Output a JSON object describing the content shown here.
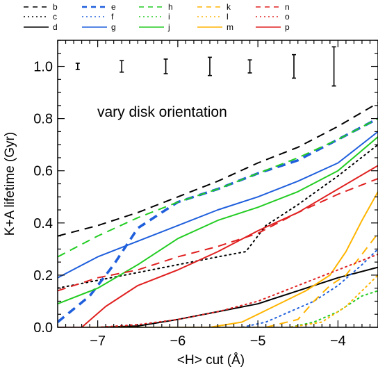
{
  "chart_data": {
    "type": "line",
    "xlabel": "<H> cut (Å)",
    "ylabel": "K+A lifetime (Gyr)",
    "xlim": [
      -7.5,
      -3.5
    ],
    "ylim": [
      0.0,
      1.1
    ],
    "xticks": [
      -7,
      -6,
      -5,
      -4
    ],
    "yticks": [
      0.0,
      0.2,
      0.4,
      0.6,
      0.8,
      1.0
    ],
    "xtick_labels": [
      "−7",
      "−6",
      "−5",
      "−4"
    ],
    "ytick_labels": [
      "0.0",
      "0.2",
      "0.4",
      "0.6",
      "0.8",
      "1.0"
    ],
    "annotation": "vary disk orientation",
    "grid": false,
    "legend_position": "top",
    "error_bars": [
      {
        "x": -7.25,
        "y": 1.0,
        "err": 0.012
      },
      {
        "x": -6.7,
        "y": 1.0,
        "err": 0.022
      },
      {
        "x": -6.15,
        "y": 1.0,
        "err": 0.028
      },
      {
        "x": -5.6,
        "y": 1.0,
        "err": 0.035
      },
      {
        "x": -5.1,
        "y": 1.0,
        "err": 0.025
      },
      {
        "x": -4.55,
        "y": 1.0,
        "err": 0.045
      },
      {
        "x": -4.05,
        "y": 1.0,
        "err": 0.075
      }
    ],
    "series": [
      {
        "name": "b",
        "color": "#000000",
        "dash": "dashed",
        "x": [
          -7.5,
          -7.0,
          -6.5,
          -6.0,
          -5.5,
          -5.0,
          -4.5,
          -4.0,
          -3.5
        ],
        "y": [
          0.35,
          0.39,
          0.44,
          0.5,
          0.56,
          0.63,
          0.69,
          0.77,
          0.86
        ]
      },
      {
        "name": "c",
        "color": "#000000",
        "dash": "dotted",
        "x": [
          -7.5,
          -7.0,
          -6.5,
          -6.0,
          -5.5,
          -5.15,
          -4.9,
          -4.5,
          -4.0,
          -3.5
        ],
        "y": [
          0.15,
          0.18,
          0.21,
          0.24,
          0.27,
          0.29,
          0.39,
          0.47,
          0.58,
          0.7
        ]
      },
      {
        "name": "d",
        "color": "#000000",
        "dash": "solid",
        "x": [
          -7.5,
          -7.0,
          -6.5,
          -6.0,
          -5.5,
          -5.0,
          -4.5,
          -4.0,
          -3.5
        ],
        "y": [
          0.0,
          0.0,
          0.005,
          0.03,
          0.06,
          0.09,
          0.14,
          0.19,
          0.23
        ]
      },
      {
        "name": "e",
        "color": "#1f5fdc",
        "dash": "dashed-thick",
        "x": [
          -7.5,
          -7.1,
          -6.8,
          -6.5,
          -6.2,
          -6.0,
          -5.5,
          -5.0,
          -4.5,
          -4.0,
          -3.5
        ],
        "y": [
          0.02,
          0.12,
          0.24,
          0.38,
          0.44,
          0.48,
          0.53,
          0.59,
          0.64,
          0.72,
          0.8
        ]
      },
      {
        "name": "f",
        "color": "#1f5fdc",
        "dash": "dotted",
        "x": [
          -7.5,
          -5.2,
          -4.9,
          -4.6,
          -4.3,
          -4.0,
          -3.7,
          -3.5
        ],
        "y": [
          0.0,
          0.0,
          0.02,
          0.06,
          0.1,
          0.16,
          0.24,
          0.3
        ]
      },
      {
        "name": "g",
        "color": "#1f5fdc",
        "dash": "solid",
        "x": [
          -7.5,
          -7.0,
          -6.5,
          -6.0,
          -5.5,
          -5.0,
          -4.5,
          -4.0,
          -3.5
        ],
        "y": [
          0.19,
          0.27,
          0.33,
          0.39,
          0.45,
          0.5,
          0.56,
          0.63,
          0.75
        ]
      },
      {
        "name": "h",
        "color": "#22cc22",
        "dash": "dashed",
        "x": [
          -7.5,
          -7.0,
          -6.5,
          -6.0,
          -5.5,
          -5.0,
          -4.5,
          -4.0,
          -3.5
        ],
        "y": [
          0.27,
          0.35,
          0.42,
          0.48,
          0.53,
          0.59,
          0.65,
          0.72,
          0.8
        ]
      },
      {
        "name": "i",
        "color": "#22cc22",
        "dash": "dotted",
        "x": [
          -7.5,
          -4.6,
          -4.3,
          -4.0,
          -3.7,
          -3.5
        ],
        "y": [
          0.0,
          0.0,
          0.02,
          0.06,
          0.12,
          0.14
        ]
      },
      {
        "name": "j",
        "color": "#22cc22",
        "dash": "solid",
        "x": [
          -7.5,
          -7.0,
          -6.5,
          -6.0,
          -5.5,
          -5.0,
          -4.5,
          -4.0,
          -3.5
        ],
        "y": [
          0.09,
          0.15,
          0.24,
          0.34,
          0.41,
          0.46,
          0.52,
          0.6,
          0.73
        ]
      },
      {
        "name": "k",
        "color": "#ffb400",
        "dash": "dashed",
        "x": [
          -7.5,
          -4.9,
          -4.5,
          -4.3,
          -4.1,
          -3.9,
          -3.7,
          -3.5
        ],
        "y": [
          0.0,
          0.0,
          0.03,
          0.1,
          0.16,
          0.2,
          0.28,
          0.36
        ]
      },
      {
        "name": "l",
        "color": "#ffb400",
        "dash": "dotted",
        "x": [
          -7.5,
          -4.6,
          -4.2,
          -3.9,
          -3.6,
          -3.5
        ],
        "y": [
          0.0,
          0.0,
          0.02,
          0.08,
          0.17,
          0.2
        ]
      },
      {
        "name": "m",
        "color": "#ffb400",
        "dash": "solid",
        "x": [
          -7.5,
          -5.6,
          -5.2,
          -4.8,
          -4.4,
          -4.1,
          -3.9,
          -3.7,
          -3.5
        ],
        "y": [
          0.0,
          0.0,
          0.02,
          0.08,
          0.14,
          0.2,
          0.29,
          0.41,
          0.52
        ]
      },
      {
        "name": "n",
        "color": "#e02020",
        "dash": "dashed",
        "x": [
          -7.5,
          -7.0,
          -6.5,
          -6.0,
          -5.5,
          -5.0,
          -4.5,
          -4.0,
          -3.5
        ],
        "y": [
          0.14,
          0.19,
          0.22,
          0.27,
          0.31,
          0.36,
          0.44,
          0.51,
          0.57
        ]
      },
      {
        "name": "o",
        "color": "#e02020",
        "dash": "dotted",
        "x": [
          -7.5,
          -7.0,
          -6.5,
          -6.0,
          -5.5,
          -5.0,
          -4.5,
          -4.0,
          -3.5
        ],
        "y": [
          0.0,
          0.0,
          0.01,
          0.03,
          0.06,
          0.1,
          0.16,
          0.22,
          0.28
        ]
      },
      {
        "name": "p",
        "color": "#e02020",
        "dash": "solid",
        "x": [
          -7.5,
          -7.2,
          -6.9,
          -6.5,
          -6.0,
          -5.5,
          -5.0,
          -4.5,
          -4.0,
          -3.5
        ],
        "y": [
          0.0,
          0.0,
          0.08,
          0.16,
          0.22,
          0.29,
          0.37,
          0.44,
          0.53,
          0.62
        ]
      }
    ]
  }
}
